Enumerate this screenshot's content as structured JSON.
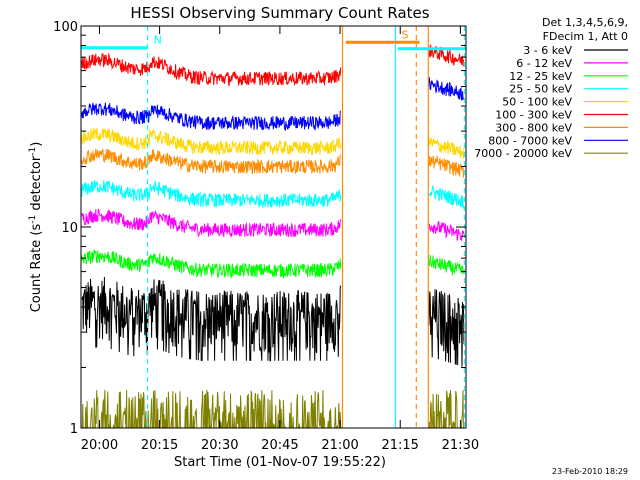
{
  "chart_data": {
    "type": "line",
    "title": "HESSI Observing Summary Count Rates",
    "xlabel": "Start Time (01-Nov-07 19:55:22)",
    "ylabel_main": "Count Rate (s",
    "ylabel_sup1": "-1",
    "ylabel_mid": " detector",
    "ylabel_sup2": "-1",
    "ylabel_end": ")",
    "y_scale": "log",
    "ylim": [
      1,
      100
    ],
    "xlim_minutes": [
      0,
      96
    ],
    "x_ticks": [
      {
        "label": "20:00",
        "t": 4.6
      },
      {
        "label": "20:15",
        "t": 19.6
      },
      {
        "label": "20:30",
        "t": 34.6
      },
      {
        "label": "20:45",
        "t": 49.6
      },
      {
        "label": "21:00",
        "t": 64.6
      },
      {
        "label": "21:15",
        "t": 79.6
      },
      {
        "label": "21:30",
        "t": 94.6
      }
    ],
    "y_ticks": [
      {
        "label": "1",
        "v": 1
      },
      {
        "label": "10",
        "v": 10
      },
      {
        "label": "100",
        "v": 100
      }
    ],
    "legend_placement": "right",
    "legend_header": [
      "Det 1,3,4,5,6,9,",
      "FDecim 1, Att 0"
    ],
    "series": [
      {
        "name": "3 - 6 keV",
        "color": "#000000",
        "front": 4.2,
        "quiet": 3.6,
        "back": 3.8
      },
      {
        "name": "6 - 12 keV",
        "color": "#ff00ff",
        "front": 11.5,
        "quiet": 9.7,
        "back": 10.3
      },
      {
        "name": "12 - 25 keV",
        "color": "#00ff00",
        "front": 7.2,
        "quiet": 6.1,
        "back": 6.8
      },
      {
        "name": "25 - 50 keV",
        "color": "#00ffff",
        "front": 16.0,
        "quiet": 13.6,
        "back": 15.2
      },
      {
        "name": "50 - 100 keV",
        "color": "#ffd700",
        "front": 29.0,
        "quiet": 24.8,
        "back": 26.5
      },
      {
        "name": "100 - 300 keV",
        "color": "#ff0000",
        "front": 68.0,
        "quiet": 55.0,
        "back": 76.0
      },
      {
        "name": "300 - 800 keV",
        "color": "#ff8c00",
        "front": 23.0,
        "quiet": 20.0,
        "back": 21.5
      },
      {
        "name": "800 - 7000 keV",
        "color": "#0000ff",
        "front": 39.0,
        "quiet": 33.0,
        "back": 52.0
      },
      {
        "name": "7000 - 20000 keV",
        "color": "#808000",
        "front": 1.4,
        "quiet": 1.2,
        "back": 1.3
      }
    ],
    "flags": [
      {
        "label": "N",
        "color": "#00ffff",
        "t_start": 0,
        "t_end": 16.6,
        "level": 78
      },
      {
        "label": "S",
        "color": "#ff8c00",
        "t_start": 66,
        "t_end": 84.4,
        "level": 83
      },
      {
        "label": "",
        "color": "#00ffff",
        "t_start": 79,
        "t_end": 96,
        "level": 77
      }
    ],
    "vlines": [
      {
        "t": 16.6,
        "color": "#00ffff",
        "style": "dashed"
      },
      {
        "t": 65.2,
        "color": "#ff8c00",
        "style": "solid"
      },
      {
        "t": 78.4,
        "color": "#00ffff",
        "style": "solid"
      },
      {
        "t": 83.6,
        "color": "#ff8c00",
        "style": "dashed"
      },
      {
        "t": 86.6,
        "color": "#ff8c00",
        "style": "solid"
      },
      {
        "t": 95.6,
        "color": "#00ffff",
        "style": "dashed"
      }
    ],
    "gap_minutes": [
      64.8,
      86.4
    ],
    "footer_date": "23-Feb-2010 18:29"
  }
}
